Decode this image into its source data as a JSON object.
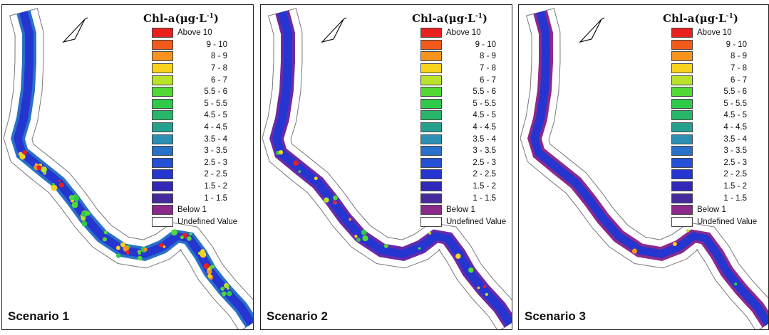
{
  "legend": {
    "title_main": "Chl-a(μg·L",
    "title_sup": "-1",
    "title_end": ")",
    "items": [
      {
        "label": "Above   10",
        "color": "#e8201e",
        "align": "left"
      },
      {
        "label": "9 - 10",
        "color": "#f25a1c",
        "align": "right"
      },
      {
        "label": "8 - 9",
        "color": "#f7931e",
        "align": "right"
      },
      {
        "label": "7 - 8",
        "color": "#f8d21c",
        "align": "right"
      },
      {
        "label": "6 - 7",
        "color": "#b9e22a",
        "align": "right"
      },
      {
        "label": "5.5 - 6",
        "color": "#52d935",
        "align": "right"
      },
      {
        "label": "5 - 5.5",
        "color": "#2fc94a",
        "align": "right"
      },
      {
        "label": "4.5 - 5",
        "color": "#27b66a",
        "align": "right"
      },
      {
        "label": "4 - 4.5",
        "color": "#26a08e",
        "align": "right"
      },
      {
        "label": "3.5 - 4",
        "color": "#2a8fb2",
        "align": "right"
      },
      {
        "label": "3 - 3.5",
        "color": "#2a70c8",
        "align": "right"
      },
      {
        "label": "2.5 - 3",
        "color": "#2650d6",
        "align": "right"
      },
      {
        "label": "2 - 2.5",
        "color": "#2535d0",
        "align": "right"
      },
      {
        "label": "1.5 - 2",
        "color": "#3128b8",
        "align": "right"
      },
      {
        "label": "1 - 1.5",
        "color": "#452a9c",
        "align": "right"
      },
      {
        "label": "Below   1",
        "color": "#8c2a8c",
        "align": "left"
      },
      {
        "label": "Undefined Value",
        "color": "#ffffff",
        "align": "left"
      }
    ]
  },
  "panels": [
    {
      "label": "Scenario 1",
      "hotspots": "high"
    },
    {
      "label": "Scenario 2",
      "hotspots": "medium"
    },
    {
      "label": "Scenario 3",
      "hotspots": "low"
    }
  ]
}
